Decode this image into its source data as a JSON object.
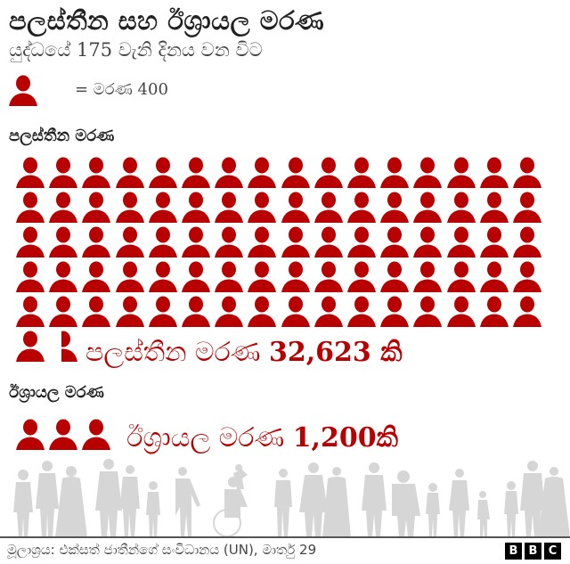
{
  "header": {
    "title": "පලස්තීන සහ ඊශ්‍රායල මරණ",
    "subtitle": "යුද්ධයේ 175 වැනි දිනය වන විට"
  },
  "legend": {
    "icon": "person-icon",
    "text": "=  මරණ 400"
  },
  "palestinian": {
    "label": "පලස්තීන මරණ",
    "total_prefix": "පලස්තීන මරණ ",
    "total_value": "32,623",
    "total_suffix": " කි"
  },
  "israeli": {
    "label": "ඊශ්‍රායල මරණ",
    "total_prefix": "ඊශ්‍රායල මරණ ",
    "total_value": "1,200",
    "total_suffix": "කි"
  },
  "footer": {
    "source": "මූලාශ්‍රය: එක්සත් ජාතීන්ගේ සංවිධානය (UN), මාර්තු 29",
    "brand": [
      "B",
      "B",
      "C"
    ]
  },
  "colors": {
    "accent": "#b80000",
    "silhouette": "#d4d4d4",
    "text": "#222222"
  },
  "chart_data": {
    "type": "pictogram",
    "title": "පලස්තීන සහ ඊශ්‍රායල මරණ",
    "subtitle": "යුද්ධයේ 175 වැනි දිනය වන විට",
    "unit_per_icon": 400,
    "unit_label": "මරණ",
    "categories": [
      "පලස්තීන මරණ",
      "ඊශ්‍රායල මරණ"
    ],
    "values": [
      32623,
      1200
    ],
    "icons": [
      81.56,
      3
    ],
    "icons_per_row": 16,
    "source": "මූලාශ්‍රය: එක්සත් ජාතීන්ගේ සංවිධානය (UN), මාර්තු 29"
  }
}
